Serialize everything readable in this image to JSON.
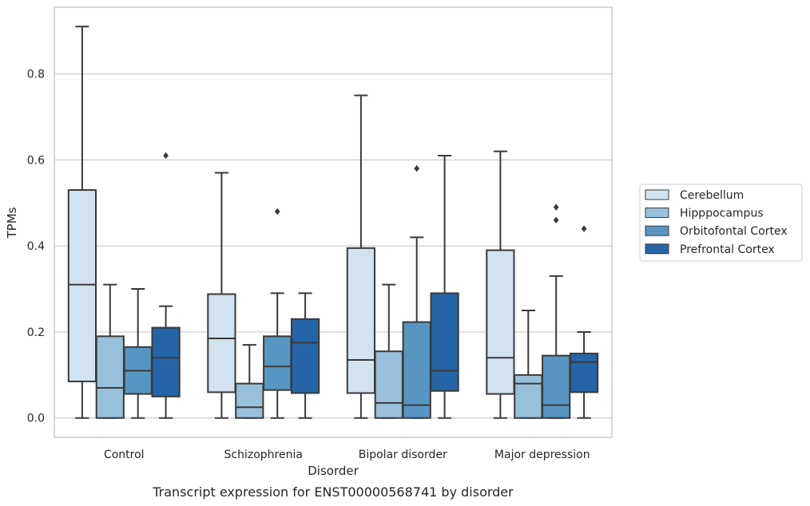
{
  "chart_data": {
    "type": "box",
    "caption": "Transcript expression for ENST00000568741 by disorder",
    "xlabel": "Disorder",
    "ylabel": "TPMs",
    "ylim": [
      -0.045,
      0.955
    ],
    "yticks": [
      0.0,
      0.2,
      0.4,
      0.6,
      0.8
    ],
    "ytick_labels": [
      "0.0",
      "0.2",
      "0.4",
      "0.6",
      "0.8"
    ],
    "grid": "horizontal",
    "legend_position": "right",
    "categories": [
      "Control",
      "Schizophrenia",
      "Bipolar disorder",
      "Major depression"
    ],
    "series": [
      {
        "name": "Cerebellum",
        "color": "#d3e2ef",
        "boxes": [
          {
            "whisker_low": 0.0,
            "q1": 0.085,
            "median": 0.31,
            "q3": 0.53,
            "whisker_high": 0.91,
            "outliers": []
          },
          {
            "whisker_low": 0.0,
            "q1": 0.06,
            "median": 0.185,
            "q3": 0.288,
            "whisker_high": 0.57,
            "outliers": []
          },
          {
            "whisker_low": 0.0,
            "q1": 0.058,
            "median": 0.135,
            "q3": 0.395,
            "whisker_high": 0.75,
            "outliers": []
          },
          {
            "whisker_low": 0.0,
            "q1": 0.056,
            "median": 0.14,
            "q3": 0.39,
            "whisker_high": 0.62,
            "outliers": []
          }
        ]
      },
      {
        "name": "Hipppocampus",
        "color": "#98c0da",
        "boxes": [
          {
            "whisker_low": 0.0,
            "q1": 0.0,
            "median": 0.07,
            "q3": 0.19,
            "whisker_high": 0.31,
            "outliers": []
          },
          {
            "whisker_low": 0.0,
            "q1": 0.0,
            "median": 0.025,
            "q3": 0.08,
            "whisker_high": 0.17,
            "outliers": []
          },
          {
            "whisker_low": 0.0,
            "q1": 0.0,
            "median": 0.035,
            "q3": 0.155,
            "whisker_high": 0.31,
            "outliers": []
          },
          {
            "whisker_low": 0.0,
            "q1": 0.0,
            "median": 0.08,
            "q3": 0.1,
            "whisker_high": 0.25,
            "outliers": []
          }
        ]
      },
      {
        "name": "Orbitofontal Cortex",
        "color": "#5796c3",
        "boxes": [
          {
            "whisker_low": 0.0,
            "q1": 0.056,
            "median": 0.11,
            "q3": 0.165,
            "whisker_high": 0.3,
            "outliers": []
          },
          {
            "whisker_low": 0.0,
            "q1": 0.065,
            "median": 0.12,
            "q3": 0.19,
            "whisker_high": 0.29,
            "outliers": [
              0.48
            ]
          },
          {
            "whisker_low": 0.0,
            "q1": 0.0,
            "median": 0.03,
            "q3": 0.223,
            "whisker_high": 0.42,
            "outliers": [
              0.58
            ]
          },
          {
            "whisker_low": 0.0,
            "q1": 0.0,
            "median": 0.03,
            "q3": 0.145,
            "whisker_high": 0.33,
            "outliers": [
              0.46,
              0.49
            ]
          }
        ]
      },
      {
        "name": "Prefrontal Cortex",
        "color": "#2565a7",
        "boxes": [
          {
            "whisker_low": 0.0,
            "q1": 0.05,
            "median": 0.14,
            "q3": 0.21,
            "whisker_high": 0.26,
            "outliers": [
              0.61
            ]
          },
          {
            "whisker_low": 0.0,
            "q1": 0.058,
            "median": 0.175,
            "q3": 0.23,
            "whisker_high": 0.29,
            "outliers": []
          },
          {
            "whisker_low": 0.0,
            "q1": 0.063,
            "median": 0.11,
            "q3": 0.29,
            "whisker_high": 0.61,
            "outliers": []
          },
          {
            "whisker_low": 0.0,
            "q1": 0.06,
            "median": 0.13,
            "q3": 0.15,
            "whisker_high": 0.2,
            "outliers": [
              0.44
            ]
          }
        ]
      }
    ]
  }
}
